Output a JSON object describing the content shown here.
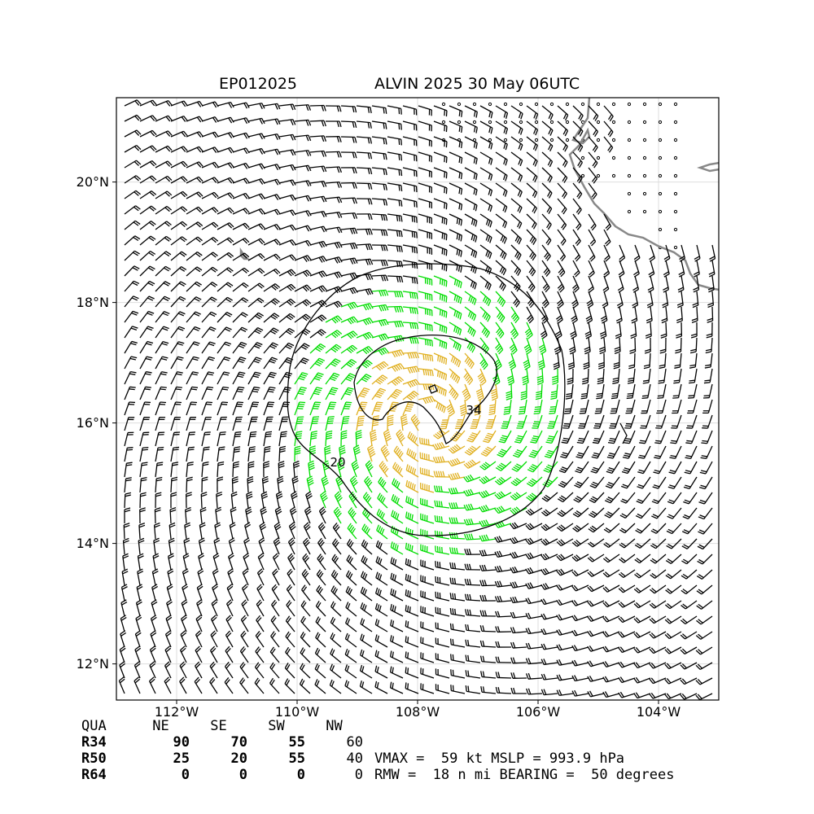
{
  "header": {
    "storm_id": "EP012025",
    "storm_title": "ALVIN 2025 30 May 06UTC"
  },
  "axes": {
    "lon_labels": [
      "112°W",
      "110°W",
      "108°W",
      "106°W",
      "104°W"
    ],
    "lat_labels": [
      "20°N",
      "18°N",
      "16°N",
      "14°N",
      "12°N"
    ],
    "lon_range": [
      -113.0,
      -103.0
    ],
    "lat_range": [
      11.4,
      21.4
    ],
    "grid": true
  },
  "storm": {
    "center_lon": -107.8,
    "center_lat": 16.1,
    "contour_labels": [
      "34",
      "20"
    ]
  },
  "wind_radii": {
    "header": [
      "QUA",
      "NE",
      "SE",
      "SW",
      "NW"
    ],
    "rows": [
      {
        "label": "R34",
        "ne": "90",
        "se": "70",
        "sw": "55",
        "nw": "60"
      },
      {
        "label": "R50",
        "ne": "25",
        "se": "20",
        "sw": "55",
        "nw": "40"
      },
      {
        "label": "R64",
        "ne": "0",
        "se": "0",
        "sw": "0",
        "nw": "0"
      }
    ]
  },
  "stats": {
    "line1": "VMAX =  59 kt MSLP = 993.9 hPa",
    "line2": "RMW =  18 n mi BEARING =  50 degrees"
  },
  "colors": {
    "barb_default": "#000000",
    "barb_34kt": "#00dd00",
    "barb_50kt": "#e0b020",
    "coastline": "#888888",
    "grid": "#dddddd"
  }
}
